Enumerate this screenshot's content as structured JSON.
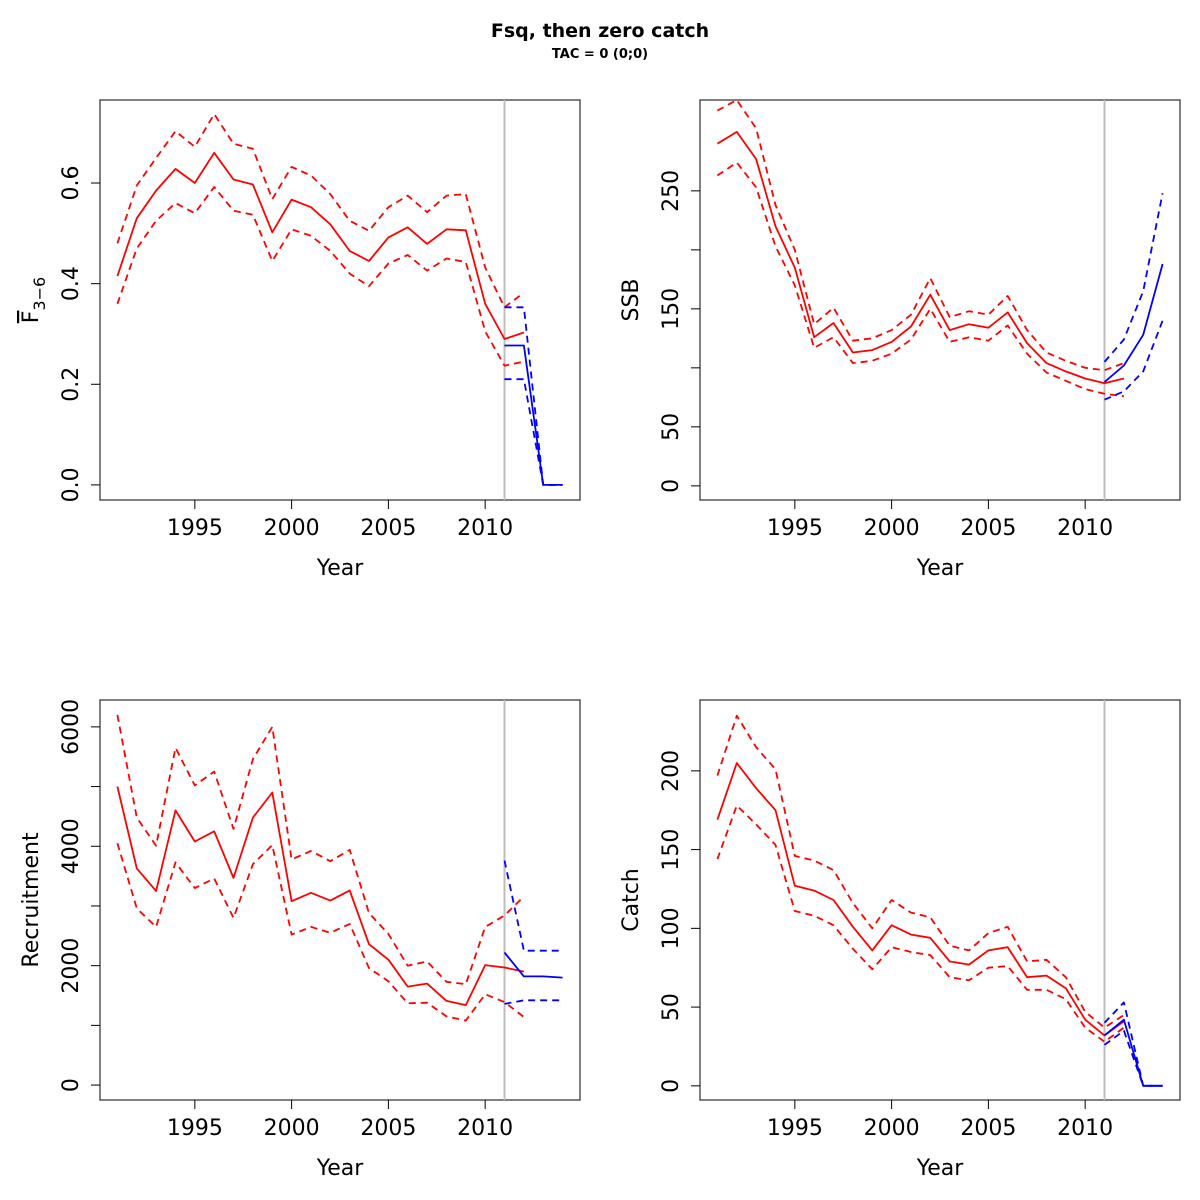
{
  "title": "Fsq, then zero catch",
  "subtitle": "TAC = 0 (0;0)",
  "colors": {
    "historic": "#ff0000",
    "projection": "#0000ff",
    "divider": "#bebebe"
  },
  "chart_data": [
    {
      "id": "fbar",
      "type": "line",
      "xlabel": "Year",
      "ylabel": "F",
      "ylabel_sub": "3−6",
      "xlim": [
        1990.1,
        2014.9
      ],
      "ylim": [
        -0.03,
        0.765
      ],
      "xticks": [
        "1995",
        "2000",
        "2005",
        "2010"
      ],
      "yticks": [
        "0.0",
        "0.2",
        "0.4",
        "0.6"
      ],
      "divider_x": 2011,
      "series": [
        {
          "role": "historic-mean",
          "style": "solid",
          "x": [
            1991,
            1992,
            1993,
            1994,
            1995,
            1996,
            1997,
            1998,
            1999,
            2000,
            2001,
            2002,
            2003,
            2004,
            2005,
            2006,
            2007,
            2008,
            2009,
            2010,
            2011,
            2012
          ],
          "y": [
            0.415,
            0.53,
            0.585,
            0.628,
            0.6,
            0.66,
            0.607,
            0.597,
            0.502,
            0.567,
            0.552,
            0.518,
            0.465,
            0.445,
            0.492,
            0.512,
            0.479,
            0.508,
            0.506,
            0.36,
            0.29,
            0.303
          ]
        },
        {
          "role": "historic-upper",
          "style": "dashed",
          "x": [
            1991,
            1992,
            1993,
            1994,
            1995,
            1996,
            1997,
            1998,
            1999,
            2000,
            2001,
            2002,
            2003,
            2004,
            2005,
            2006,
            2007,
            2008,
            2009,
            2010,
            2011,
            2012
          ],
          "y": [
            0.48,
            0.595,
            0.65,
            0.703,
            0.672,
            0.737,
            0.678,
            0.668,
            0.568,
            0.632,
            0.615,
            0.578,
            0.525,
            0.505,
            0.552,
            0.575,
            0.542,
            0.575,
            0.578,
            0.432,
            0.353,
            0.382
          ]
        },
        {
          "role": "historic-lower",
          "style": "dashed",
          "x": [
            1991,
            1992,
            1993,
            1994,
            1995,
            1996,
            1997,
            1998,
            1999,
            2000,
            2001,
            2002,
            2003,
            2004,
            2005,
            2006,
            2007,
            2008,
            2009,
            2010,
            2011,
            2012
          ],
          "y": [
            0.36,
            0.47,
            0.525,
            0.56,
            0.54,
            0.592,
            0.545,
            0.537,
            0.445,
            0.508,
            0.495,
            0.465,
            0.42,
            0.395,
            0.44,
            0.457,
            0.426,
            0.45,
            0.443,
            0.305,
            0.237,
            0.245
          ]
        },
        {
          "role": "projection-mean",
          "style": "solid",
          "x": [
            2011,
            2012,
            2013,
            2014
          ],
          "y": [
            0.277,
            0.277,
            0,
            0
          ]
        },
        {
          "role": "projection-upper",
          "style": "dashed",
          "x": [
            2011,
            2012,
            2013,
            2014
          ],
          "y": [
            0.353,
            0.353,
            0,
            0
          ]
        },
        {
          "role": "projection-lower",
          "style": "dashed",
          "x": [
            2011,
            2012,
            2013,
            2014
          ],
          "y": [
            0.21,
            0.21,
            0,
            0
          ]
        }
      ]
    },
    {
      "id": "ssb",
      "type": "line",
      "xlabel": "Year",
      "ylabel": "SSB",
      "xlim": [
        1990.1,
        2014.9
      ],
      "ylim": [
        -12,
        327
      ],
      "xticks": [
        "1995",
        "2000",
        "2005",
        "2010"
      ],
      "yticks": [
        "0",
        "50",
        "150",
        "250"
      ],
      "minor_yticks": [
        100,
        200
      ],
      "divider_x": 2011,
      "series": [
        {
          "role": "historic-mean",
          "style": "solid",
          "x": [
            1991,
            1992,
            1993,
            1994,
            1995,
            1996,
            1997,
            1998,
            1999,
            2000,
            2001,
            2002,
            2003,
            2004,
            2005,
            2006,
            2007,
            2008,
            2009,
            2010,
            2011,
            2012
          ],
          "y": [
            290,
            300,
            277,
            220,
            185,
            126,
            138,
            113,
            115,
            122,
            135,
            162,
            132,
            137,
            134,
            147,
            121,
            104,
            97,
            91,
            87,
            91
          ]
        },
        {
          "role": "historic-upper",
          "style": "dashed",
          "x": [
            1991,
            1992,
            1993,
            1994,
            1995,
            1996,
            1997,
            1998,
            1999,
            2000,
            2001,
            2002,
            2003,
            2004,
            2005,
            2006,
            2007,
            2008,
            2009,
            2010,
            2011,
            2012
          ],
          "y": [
            318,
            327,
            303,
            238,
            200,
            137,
            151,
            123,
            125,
            132,
            145,
            176,
            143,
            148,
            145,
            161,
            132,
            113,
            106,
            100,
            98,
            104
          ]
        },
        {
          "role": "historic-lower",
          "style": "dashed",
          "x": [
            1991,
            1992,
            1993,
            1994,
            1995,
            1996,
            1997,
            1998,
            1999,
            2000,
            2001,
            2002,
            2003,
            2004,
            2005,
            2006,
            2007,
            2008,
            2009,
            2010,
            2011,
            2012
          ],
          "y": [
            263,
            274,
            253,
            203,
            170,
            117,
            126,
            104,
            106,
            112,
            124,
            150,
            122,
            126,
            123,
            136,
            112,
            96,
            89,
            82,
            78,
            76
          ]
        },
        {
          "role": "projection-mean",
          "style": "solid",
          "x": [
            2011,
            2012,
            2013,
            2014
          ],
          "y": [
            88,
            102,
            128,
            188
          ]
        },
        {
          "role": "projection-upper",
          "style": "dashed",
          "x": [
            2011,
            2012,
            2013,
            2014
          ],
          "y": [
            105,
            124,
            165,
            248
          ]
        },
        {
          "role": "projection-lower",
          "style": "dashed",
          "x": [
            2011,
            2012,
            2013,
            2014
          ],
          "y": [
            73,
            80,
            97,
            140
          ]
        }
      ]
    },
    {
      "id": "recruitment",
      "type": "line",
      "xlabel": "Year",
      "ylabel": "Recruitment",
      "xlim": [
        1990.1,
        2014.9
      ],
      "ylim": [
        -250,
        6450
      ],
      "xticks": [
        "1995",
        "2000",
        "2005",
        "2010"
      ],
      "yticks": [
        "0",
        "2000",
        "4000",
        "6000"
      ],
      "minor_yticks": [
        1000,
        3000,
        5000
      ],
      "divider_x": 2011,
      "series": [
        {
          "role": "historic-mean",
          "style": "solid",
          "x": [
            1991,
            1992,
            1993,
            1994,
            1995,
            1996,
            1997,
            1998,
            1999,
            2000,
            2001,
            2002,
            2003,
            2004,
            2005,
            2006,
            2007,
            2008,
            2009,
            2010,
            2011,
            2012
          ],
          "y": [
            5000,
            3630,
            3250,
            4600,
            4080,
            4250,
            3470,
            4480,
            4900,
            3080,
            3220,
            3090,
            3260,
            2360,
            2100,
            1650,
            1700,
            1410,
            1340,
            2010,
            1970,
            1900
          ]
        },
        {
          "role": "historic-upper",
          "style": "dashed",
          "x": [
            1991,
            1992,
            1993,
            1994,
            1995,
            1996,
            1997,
            1998,
            1999,
            2000,
            2001,
            2002,
            2003,
            2004,
            2005,
            2006,
            2007,
            2008,
            2009,
            2010,
            2011,
            2012
          ],
          "y": [
            6200,
            4480,
            4010,
            5650,
            5020,
            5250,
            4290,
            5460,
            6000,
            3780,
            3920,
            3750,
            3940,
            2880,
            2530,
            2000,
            2070,
            1730,
            1690,
            2650,
            2840,
            3160
          ]
        },
        {
          "role": "historic-lower",
          "style": "dashed",
          "x": [
            1991,
            1992,
            1993,
            1994,
            1995,
            1996,
            1997,
            1998,
            1999,
            2000,
            2001,
            2002,
            2003,
            2004,
            2005,
            2006,
            2007,
            2008,
            2009,
            2010,
            2011,
            2012
          ],
          "y": [
            4050,
            2960,
            2650,
            3730,
            3300,
            3460,
            2800,
            3700,
            4020,
            2520,
            2650,
            2550,
            2700,
            1960,
            1740,
            1370,
            1380,
            1150,
            1080,
            1520,
            1390,
            1140
          ]
        },
        {
          "role": "projection-mean",
          "style": "solid",
          "x": [
            2011,
            2012,
            2013,
            2014
          ],
          "y": [
            2220,
            1820,
            1820,
            1800
          ]
        },
        {
          "role": "projection-upper",
          "style": "dashed",
          "x": [
            2011,
            2012,
            2013,
            2014
          ],
          "y": [
            3760,
            2250,
            2250,
            2250
          ]
        },
        {
          "role": "projection-lower",
          "style": "dashed",
          "x": [
            2011,
            2012,
            2013,
            2014
          ],
          "y": [
            1360,
            1420,
            1420,
            1420
          ]
        }
      ]
    },
    {
      "id": "catch",
      "type": "line",
      "xlabel": "Year",
      "ylabel": "Catch",
      "xlim": [
        1990.1,
        2014.9
      ],
      "ylim": [
        -9,
        245
      ],
      "xticks": [
        "1995",
        "2000",
        "2005",
        "2010"
      ],
      "yticks": [
        "0",
        "50",
        "100",
        "150",
        "200"
      ],
      "divider_x": 2011,
      "series": [
        {
          "role": "historic-mean",
          "style": "solid",
          "x": [
            1991,
            1992,
            1993,
            1994,
            1995,
            1996,
            1997,
            1998,
            1999,
            2000,
            2001,
            2002,
            2003,
            2004,
            2005,
            2006,
            2007,
            2008,
            2009,
            2010,
            2011,
            2012
          ],
          "y": [
            169,
            205,
            189,
            175,
            127,
            124,
            118,
            101,
            86,
            102,
            96,
            94,
            79,
            77,
            86,
            88,
            69,
            70,
            62,
            42,
            32,
            41
          ]
        },
        {
          "role": "historic-upper",
          "style": "dashed",
          "x": [
            1991,
            1992,
            1993,
            1994,
            1995,
            1996,
            1997,
            1998,
            1999,
            2000,
            2001,
            2002,
            2003,
            2004,
            2005,
            2006,
            2007,
            2008,
            2009,
            2010,
            2011,
            2012
          ],
          "y": [
            197,
            235,
            215,
            201,
            146,
            143,
            137,
            116,
            100,
            118,
            110,
            107,
            89,
            86,
            97,
            101,
            79,
            80,
            69,
            47,
            37,
            45
          ]
        },
        {
          "role": "historic-lower",
          "style": "dashed",
          "x": [
            1991,
            1992,
            1993,
            1994,
            1995,
            1996,
            1997,
            1998,
            1999,
            2000,
            2001,
            2002,
            2003,
            2004,
            2005,
            2006,
            2007,
            2008,
            2009,
            2010,
            2011,
            2012
          ],
          "y": [
            144,
            178,
            166,
            153,
            111,
            108,
            102,
            87,
            74,
            88,
            85,
            83,
            69,
            67,
            75,
            76,
            61,
            61,
            55,
            37,
            28,
            37
          ]
        },
        {
          "role": "projection-mean",
          "style": "solid",
          "x": [
            2011,
            2012,
            2013,
            2014
          ],
          "y": [
            32,
            42,
            0,
            0
          ]
        },
        {
          "role": "projection-upper",
          "style": "dashed",
          "x": [
            2011,
            2012,
            2013,
            2014
          ],
          "y": [
            40,
            53,
            0,
            0
          ]
        },
        {
          "role": "projection-lower",
          "style": "dashed",
          "x": [
            2011,
            2012,
            2013,
            2014
          ],
          "y": [
            26,
            35,
            0,
            0
          ]
        }
      ]
    }
  ]
}
